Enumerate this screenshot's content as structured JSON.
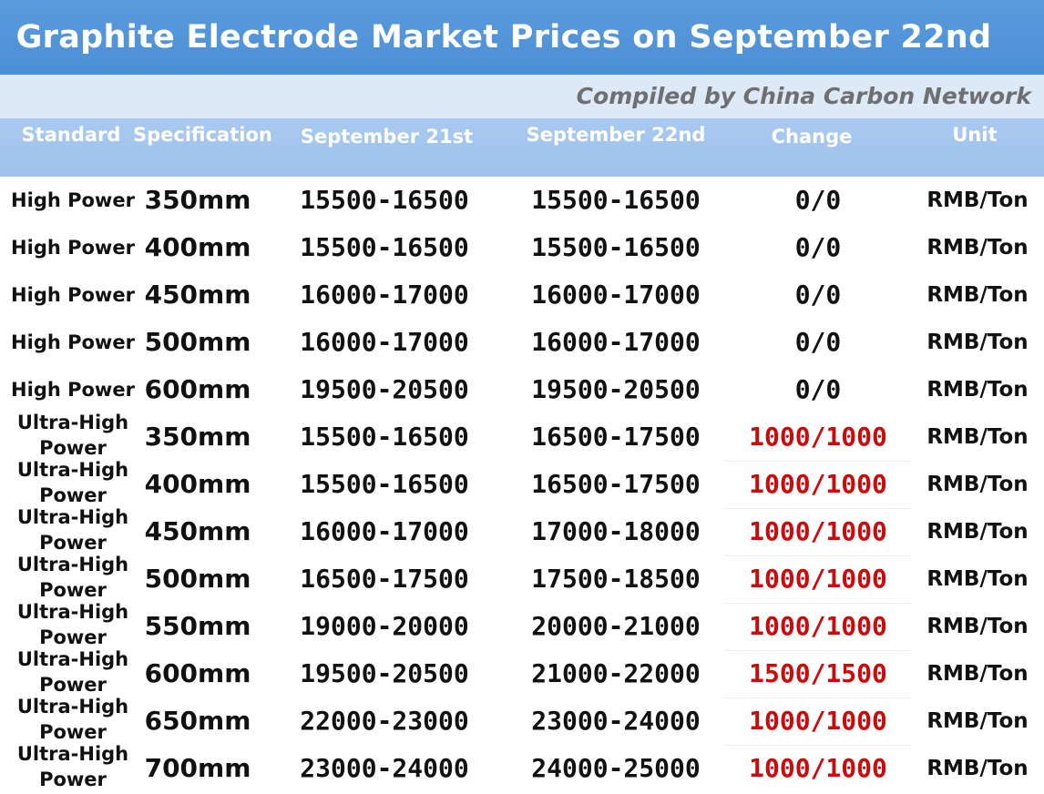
{
  "header": {
    "title": "Graphite Electrode Market Prices on September 22nd",
    "subtitle": "Compiled by China Carbon Network"
  },
  "colors": {
    "title_bg": "#4b8fd6",
    "subtitle_bg": "#dde9f6",
    "header_bg": "#a3c6ee",
    "increase_text": "#cc0a0a"
  },
  "chart_data": {
    "type": "table",
    "title": "Graphite Electrode Market Prices on September 22nd",
    "subtitle": "Compiled by China Carbon Network",
    "columns": [
      "Standard",
      "Specification",
      "September 21st",
      "September 22nd",
      "Change",
      "Unit"
    ],
    "rows": [
      [
        "High Power",
        "350mm",
        "15500-16500",
        "15500-16500",
        "0/0",
        "RMB/Ton"
      ],
      [
        "High Power",
        "400mm",
        "15500-16500",
        "15500-16500",
        "0/0",
        "RMB/Ton"
      ],
      [
        "High Power",
        "450mm",
        "16000-17000",
        "16000-17000",
        "0/0",
        "RMB/Ton"
      ],
      [
        "High Power",
        "500mm",
        "16000-17000",
        "16000-17000",
        "0/0",
        "RMB/Ton"
      ],
      [
        "High Power",
        "600mm",
        "19500-20500",
        "19500-20500",
        "0/0",
        "RMB/Ton"
      ],
      [
        "Ultra-High Power",
        "350mm",
        "15500-16500",
        "16500-17500",
        "1000/1000",
        "RMB/Ton"
      ],
      [
        "Ultra-High Power",
        "400mm",
        "15500-16500",
        "16500-17500",
        "1000/1000",
        "RMB/Ton"
      ],
      [
        "Ultra-High Power",
        "450mm",
        "16000-17000",
        "17000-18000",
        "1000/1000",
        "RMB/Ton"
      ],
      [
        "Ultra-High Power",
        "500mm",
        "16500-17500",
        "17500-18500",
        "1000/1000",
        "RMB/Ton"
      ],
      [
        "Ultra-High Power",
        "550mm",
        "19000-20000",
        "20000-21000",
        "1000/1000",
        "RMB/Ton"
      ],
      [
        "Ultra-High Power",
        "600mm",
        "19500-20500",
        "21000-22000",
        "1500/1500",
        "RMB/Ton"
      ],
      [
        "Ultra-High Power",
        "650mm",
        "22000-23000",
        "23000-24000",
        "1000/1000",
        "RMB/Ton"
      ],
      [
        "Ultra-High Power",
        "700mm",
        "23000-24000",
        "24000-25000",
        "1000/1000",
        "RMB/Ton"
      ]
    ]
  }
}
